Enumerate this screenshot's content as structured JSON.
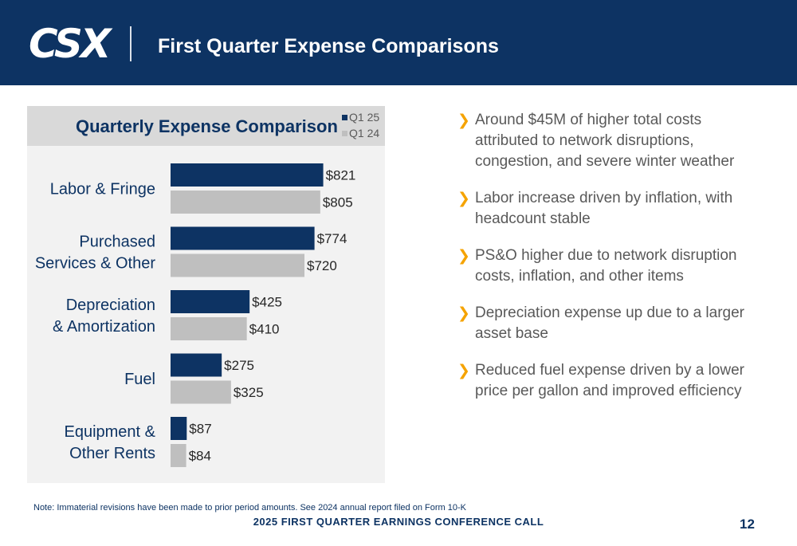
{
  "header": {
    "logo": "CSX",
    "title": "First Quarter Expense Comparisons"
  },
  "colors": {
    "header_bg": "#0d3363",
    "q1_25": "#0d3363",
    "q1_24": "#bfbfbf",
    "bullet_accent": "#f5a300",
    "panel_bg": "#f2f2f2",
    "title_band_bg": "#d9d9d9"
  },
  "chart_data": {
    "type": "bar",
    "orientation": "horizontal",
    "title": "Quarterly Expense Comparison",
    "categories": [
      [
        "Labor & Fringe"
      ],
      [
        "Purchased",
        "Services & Other"
      ],
      [
        "Depreciation",
        "& Amortization"
      ],
      [
        "Fuel"
      ],
      [
        "Equipment &",
        "Other Rents"
      ]
    ],
    "series": [
      {
        "name": "Q1 25",
        "values": [
          821,
          774,
          425,
          275,
          87
        ],
        "labels": [
          "$821",
          "$774",
          "$425",
          "$275",
          "$87"
        ],
        "color": "#0d3363"
      },
      {
        "name": "Q1 24",
        "values": [
          805,
          720,
          410,
          325,
          84
        ],
        "labels": [
          "$805",
          "$720",
          "$410",
          "$325",
          "$84"
        ],
        "color": "#bfbfbf"
      }
    ],
    "xlim": [
      0,
      900
    ],
    "legend_position": "top-right",
    "grid": false
  },
  "bullets": [
    {
      "icon": "chevron-right-icon",
      "text": "Around $45M of higher total costs attributed to network disruptions, congestion, and severe winter weather"
    },
    {
      "icon": "chevron-right-icon",
      "text": "Labor increase driven by inflation, with headcount stable"
    },
    {
      "icon": "chevron-right-icon",
      "text": "PS&O higher due to network disruption costs, inflation, and other items"
    },
    {
      "icon": "chevron-right-icon",
      "text": "Depreciation expense up due to a larger asset base"
    },
    {
      "icon": "chevron-right-icon",
      "text": "Reduced fuel expense driven by a lower price per gallon and improved efficiency"
    }
  ],
  "footnote": "Note: Immaterial revisions have been made to prior period amounts. See 2024 annual report filed on Form 10-K",
  "footer": {
    "title": "2025 FIRST QUARTER EARNINGS CONFERENCE CALL",
    "page_number": "12"
  }
}
